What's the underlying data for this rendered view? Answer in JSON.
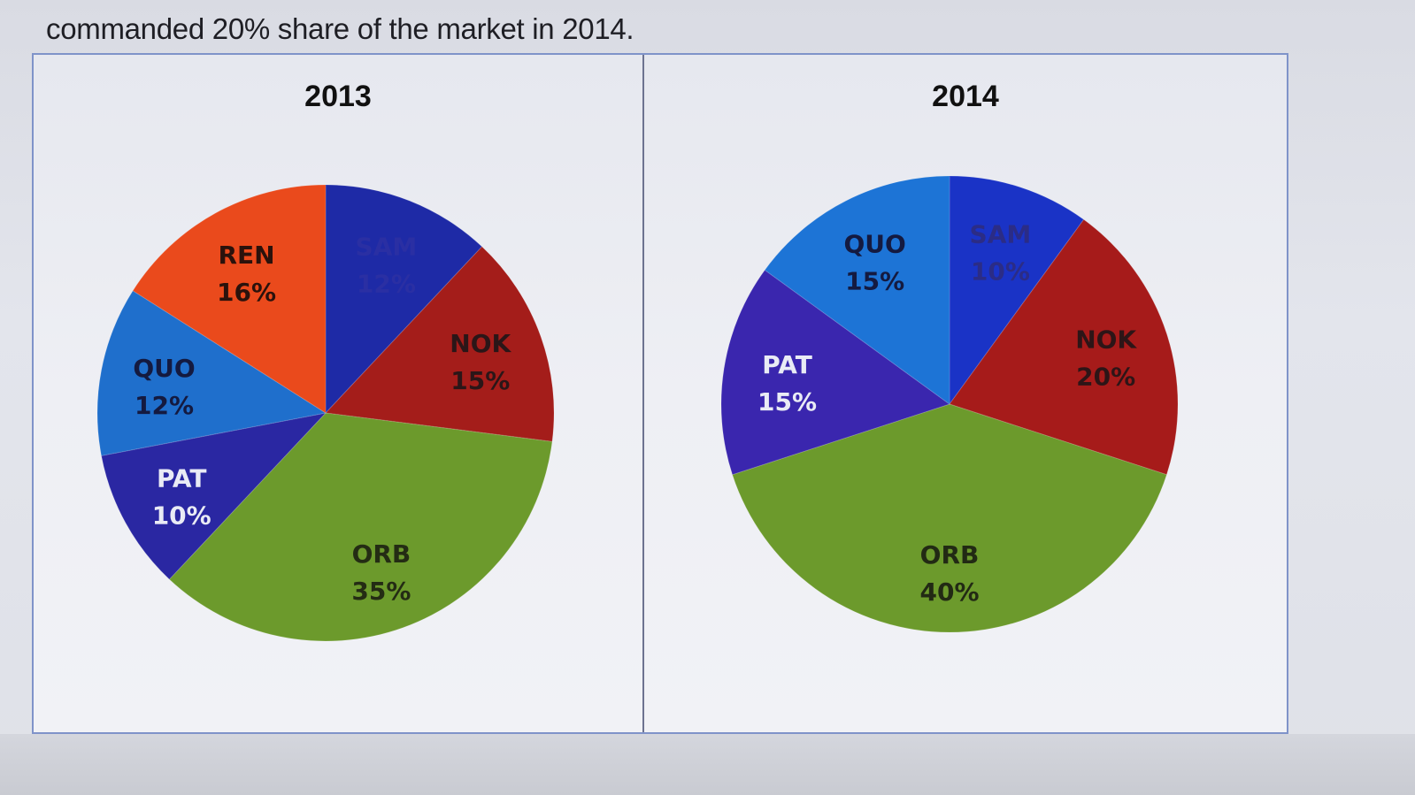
{
  "caption": "commanded 20% share of the market in 2014.",
  "chart_data": [
    {
      "type": "pie",
      "title": "2013",
      "slices": [
        {
          "label": "SAM",
          "value": 12,
          "display": "12%",
          "color": "#1e2aa6",
          "label_color": "#2a2fa3"
        },
        {
          "label": "NOK",
          "value": 15,
          "display": "15%",
          "color": "#a41d1a",
          "label_color": "#2b1618"
        },
        {
          "label": "ORB",
          "value": 35,
          "display": "35%",
          "color": "#6c9a2c",
          "label_color": "#242c14"
        },
        {
          "label": "PAT",
          "value": 10,
          "display": "10%",
          "color": "#2a27a2",
          "label_color": "#e9ebf5"
        },
        {
          "label": "QUO",
          "value": 12,
          "display": "12%",
          "color": "#1f6fcc",
          "label_color": "#141a40"
        },
        {
          "label": "REN",
          "value": 16,
          "display": "16%",
          "color": "#ea4a1c",
          "label_color": "#2a120c"
        }
      ]
    },
    {
      "type": "pie",
      "title": "2014",
      "slices": [
        {
          "label": "SAM",
          "value": 10,
          "display": "10%",
          "color": "#1a33c6",
          "label_color": "#2b2c86"
        },
        {
          "label": "NOK",
          "value": 20,
          "display": "20%",
          "color": "#a61b1a",
          "label_color": "#2d1517"
        },
        {
          "label": "ORB",
          "value": 40,
          "display": "40%",
          "color": "#6c9a2c",
          "label_color": "#222a14"
        },
        {
          "label": "PAT",
          "value": 15,
          "display": "15%",
          "color": "#3a26ae",
          "label_color": "#e9ebf5"
        },
        {
          "label": "QUO",
          "value": 15,
          "display": "15%",
          "color": "#1d74d6",
          "label_color": "#141a40"
        }
      ]
    }
  ]
}
